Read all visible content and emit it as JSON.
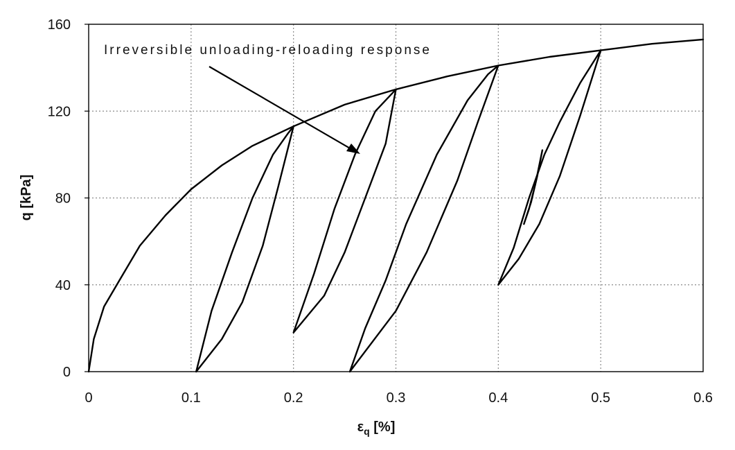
{
  "chart_data": {
    "type": "line",
    "title": "",
    "xlabel": "ε",
    "xlabel_sub": "q",
    "xlabel_unit": " [%]",
    "ylabel": "q [kPa]",
    "xlim": [
      0,
      0.6
    ],
    "ylim": [
      0,
      160
    ],
    "x_ticks": [
      "0",
      "0.1",
      "0.2",
      "0.3",
      "0.4",
      "0.5",
      "0.6"
    ],
    "y_ticks": [
      "0",
      "40",
      "80",
      "120",
      "160"
    ],
    "grid": true,
    "annotation": "Irreversible unloading-reloading response",
    "series": [
      {
        "points": [
          [
            0,
            0
          ],
          [
            0.005,
            15
          ],
          [
            0.015,
            30
          ],
          [
            0.03,
            42
          ],
          [
            0.05,
            58
          ],
          [
            0.075,
            72
          ],
          [
            0.1,
            84
          ],
          [
            0.13,
            95
          ],
          [
            0.16,
            104
          ],
          [
            0.2,
            113
          ],
          [
            0.25,
            123
          ],
          [
            0.3,
            130
          ],
          [
            0.35,
            136
          ],
          [
            0.4,
            141
          ],
          [
            0.45,
            145
          ],
          [
            0.5,
            148
          ],
          [
            0.55,
            151
          ],
          [
            0.6,
            153
          ]
        ]
      },
      {
        "points": [
          [
            0.2,
            113
          ],
          [
            0.185,
            85
          ],
          [
            0.17,
            58
          ],
          [
            0.15,
            32
          ],
          [
            0.13,
            15
          ],
          [
            0.105,
            0
          ],
          [
            0.12,
            28
          ],
          [
            0.14,
            55
          ],
          [
            0.16,
            80
          ],
          [
            0.18,
            100
          ],
          [
            0.195,
            110
          ],
          [
            0.2,
            113
          ]
        ]
      },
      {
        "points": [
          [
            0.3,
            130
          ],
          [
            0.29,
            105
          ],
          [
            0.27,
            80
          ],
          [
            0.25,
            55
          ],
          [
            0.23,
            35
          ],
          [
            0.2,
            18
          ],
          [
            0.22,
            45
          ],
          [
            0.24,
            75
          ],
          [
            0.26,
            100
          ],
          [
            0.28,
            120
          ],
          [
            0.3,
            130
          ]
        ]
      },
      {
        "points": [
          [
            0.4,
            141
          ],
          [
            0.38,
            115
          ],
          [
            0.36,
            88
          ],
          [
            0.33,
            55
          ],
          [
            0.3,
            28
          ],
          [
            0.255,
            0
          ],
          [
            0.27,
            20
          ],
          [
            0.29,
            42
          ],
          [
            0.31,
            68
          ],
          [
            0.34,
            100
          ],
          [
            0.37,
            125
          ],
          [
            0.39,
            137
          ],
          [
            0.4,
            141
          ]
        ]
      },
      {
        "points": [
          [
            0.5,
            148
          ],
          [
            0.48,
            118
          ],
          [
            0.46,
            90
          ],
          [
            0.44,
            68
          ],
          [
            0.42,
            52
          ],
          [
            0.4,
            40
          ],
          [
            0.415,
            57
          ],
          [
            0.43,
            80
          ],
          [
            0.445,
            100
          ],
          [
            0.46,
            115
          ],
          [
            0.48,
            133
          ],
          [
            0.5,
            148
          ]
        ]
      },
      {
        "points": [
          [
            0.425,
            68
          ],
          [
            0.432,
            78
          ],
          [
            0.438,
            90
          ],
          [
            0.443,
            102
          ],
          [
            0.436,
            86
          ],
          [
            0.43,
            75
          ],
          [
            0.425,
            68
          ]
        ]
      }
    ]
  }
}
